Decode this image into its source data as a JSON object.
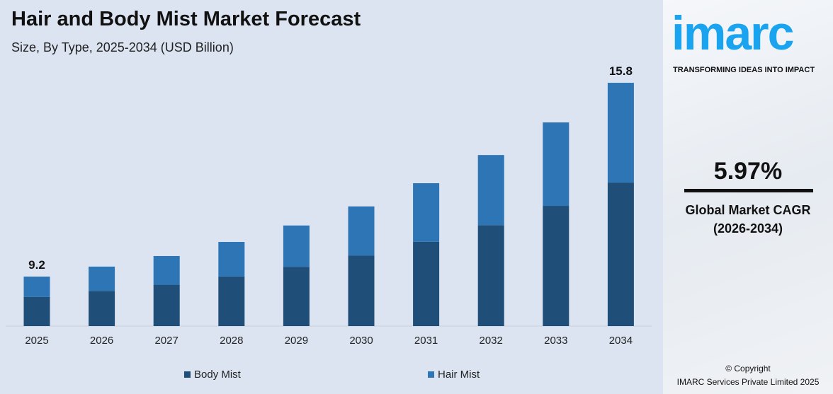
{
  "chart_data": {
    "type": "bar",
    "stacked": true,
    "title": "Hair and Body Mist Market Forecast",
    "subtitle": "Size, By Type, 2025-2034 (USD Billion)",
    "categories": [
      "2025",
      "2026",
      "2027",
      "2028",
      "2029",
      "2030",
      "2031",
      "2032",
      "2033",
      "2034"
    ],
    "series": [
      {
        "name": "Body Mist",
        "color": "#1f4e79",
        "values": [
          5.43,
          5.63,
          5.84,
          6.12,
          6.45,
          6.84,
          7.3,
          7.87,
          8.53,
          9.32
        ]
      },
      {
        "name": "Hair Mist",
        "color": "#2e75b6",
        "values": [
          3.77,
          3.91,
          4.06,
          4.26,
          4.49,
          4.75,
          5.08,
          5.47,
          5.92,
          6.48
        ]
      }
    ],
    "totals": [
      9.2,
      9.54,
      9.9,
      10.38,
      10.94,
      11.59,
      12.38,
      13.34,
      14.45,
      15.8
    ],
    "data_labels": {
      "0": "9.2",
      "9": "15.8"
    },
    "grid": false,
    "legend": "bottom"
  },
  "brand": {
    "logo": "imarc",
    "tagline": "TRANSFORMING IDEAS INTO IMPACT"
  },
  "cagr": {
    "value": "5.97%",
    "label_line1": "Global Market CAGR",
    "label_line2": "(2026-2034)"
  },
  "footer": {
    "line1": "© Copyright",
    "line2": "IMARC Services Private Limited 2025"
  }
}
